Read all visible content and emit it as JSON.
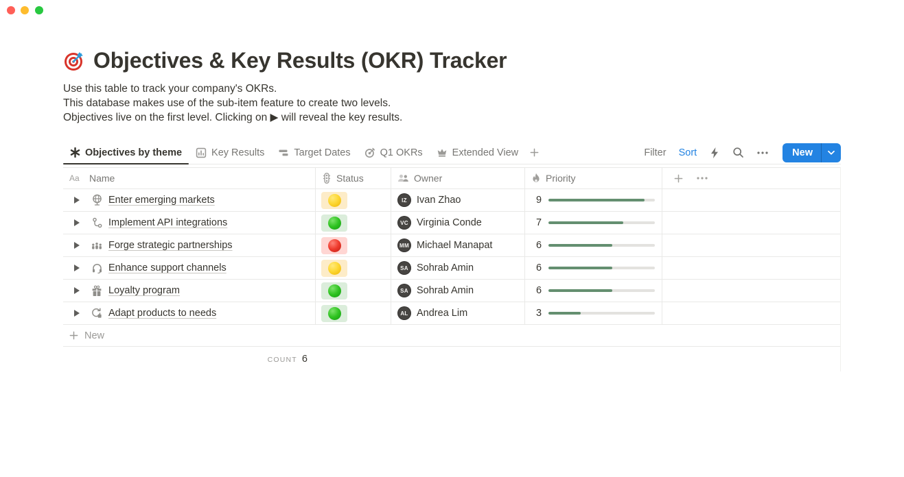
{
  "window": {
    "controls": [
      {
        "name": "close",
        "color": "#ff5f57"
      },
      {
        "name": "minimize",
        "color": "#febc2e"
      },
      {
        "name": "zoom",
        "color": "#28c840"
      }
    ]
  },
  "page": {
    "emoji": "dart-target",
    "title": "Objectives & Key Results (OKR) Tracker",
    "description": [
      "Use this table to track your company's OKRs.",
      "This database makes use of the sub-item feature to create two levels.",
      "Objectives live on the first level. Clicking on ▶ will reveal the key results."
    ]
  },
  "view_tabs": [
    {
      "label": "Objectives by theme",
      "icon": "spark-icon",
      "active": true
    },
    {
      "label": "Key Results",
      "icon": "chart-icon",
      "active": false
    },
    {
      "label": "Target Dates",
      "icon": "timeline-icon",
      "active": false
    },
    {
      "label": "Q1 OKRs",
      "icon": "target-icon",
      "active": false
    },
    {
      "label": "Extended View",
      "icon": "crown-icon",
      "active": false
    }
  ],
  "toolbar": {
    "filter_label": "Filter",
    "sort_label": "Sort",
    "icon_buttons": [
      "lightning-icon",
      "search-icon",
      "more-icon"
    ],
    "new_button_label": "New"
  },
  "table": {
    "columns": [
      {
        "label": "Name",
        "icon": "text-type-icon"
      },
      {
        "label": "Status",
        "icon": "traffic-light-icon"
      },
      {
        "label": "Owner",
        "icon": "people-icon"
      },
      {
        "label": "Priority",
        "icon": "flame-icon"
      }
    ],
    "rows": [
      {
        "name": "Enter emerging markets",
        "icon": "globe-icon",
        "status": "yellow",
        "owner": "Ivan Zhao",
        "priority": 9
      },
      {
        "name": "Implement API integrations",
        "icon": "api-icon",
        "status": "green",
        "owner": "Virginia Conde",
        "priority": 7
      },
      {
        "name": "Forge strategic partnerships",
        "icon": "partnership-icon",
        "status": "red",
        "owner": "Michael Manapat",
        "priority": 6
      },
      {
        "name": "Enhance support channels",
        "icon": "headphones-icon",
        "status": "yellow",
        "owner": "Sohrab Amin",
        "priority": 6
      },
      {
        "name": "Loyalty program",
        "icon": "gift-icon",
        "status": "green",
        "owner": "Sohrab Amin",
        "priority": 6
      },
      {
        "name": "Adapt products to needs",
        "icon": "adapt-icon",
        "status": "green",
        "owner": "Andrea Lim",
        "priority": 3
      }
    ],
    "priority_scale_max": 10,
    "new_row_label": "New",
    "count_label": "COUNT",
    "count_value": "6"
  },
  "colors": {
    "accent_blue": "#2383e2",
    "progress_green": "#648f70",
    "status_yellow_bg": "#fdecc8",
    "status_green_bg": "#dbeddb",
    "status_red_bg": "#ffd6d3",
    "border": "#e9e9e7",
    "text_primary": "#37352f",
    "text_secondary": "#787774"
  }
}
